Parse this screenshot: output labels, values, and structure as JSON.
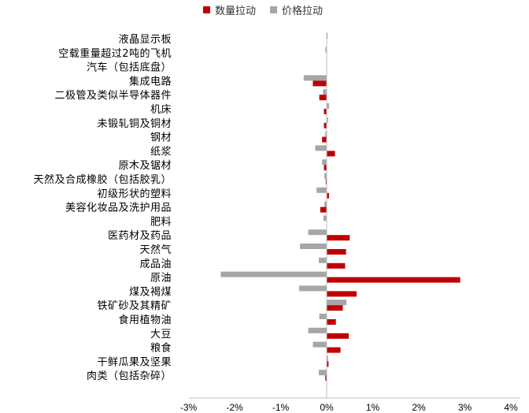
{
  "chart_data": {
    "type": "bar",
    "orientation": "horizontal",
    "legend_position": "top",
    "grid": false,
    "categories": [
      "液晶显示板",
      "空载重量超过2吨的飞机",
      "汽车（包括底盘）",
      "集成电路",
      "二极管及类似半导体器件",
      "机床",
      "未锻轧铜及铜材",
      "钢材",
      "纸浆",
      "原木及锯材",
      "天然及合成橡胶（包括胶乳）",
      "初级形状的塑料",
      "美容化妆品及洗护用品",
      "肥料",
      "医药材及药品",
      "天然气",
      "成品油",
      "原油",
      "煤及褐煤",
      "铁矿砂及其精矿",
      "食用植物油",
      "大豆",
      "粮食",
      "干鲜瓜果及坚果",
      "肉类（包括杂碎）"
    ],
    "series": [
      {
        "name": "数量拉动",
        "color": "#c00000",
        "values": [
          0.0,
          0.0,
          0.0,
          -0.3,
          -0.16,
          -0.06,
          -0.06,
          -0.1,
          0.18,
          -0.06,
          -0.02,
          0.05,
          -0.14,
          0.0,
          0.5,
          0.42,
          0.4,
          2.9,
          0.65,
          0.35,
          0.2,
          0.48,
          0.3,
          0.04,
          -0.03
        ]
      },
      {
        "name": "价格拉动",
        "color": "#a6a6a6",
        "values": [
          0.02,
          -0.03,
          0.0,
          -0.5,
          -0.08,
          0.05,
          0.03,
          -0.03,
          -0.25,
          -0.1,
          -0.05,
          -0.22,
          -0.05,
          -0.07,
          -0.4,
          -0.58,
          -0.17,
          -2.3,
          -0.6,
          0.43,
          -0.16,
          -0.4,
          -0.3,
          0.03,
          -0.17
        ]
      }
    ],
    "x_ticks": [
      "-3%",
      "-2%",
      "-1%",
      "0%",
      "1%",
      "2%",
      "3%",
      "4%"
    ],
    "xlim": [
      -3,
      4
    ]
  }
}
